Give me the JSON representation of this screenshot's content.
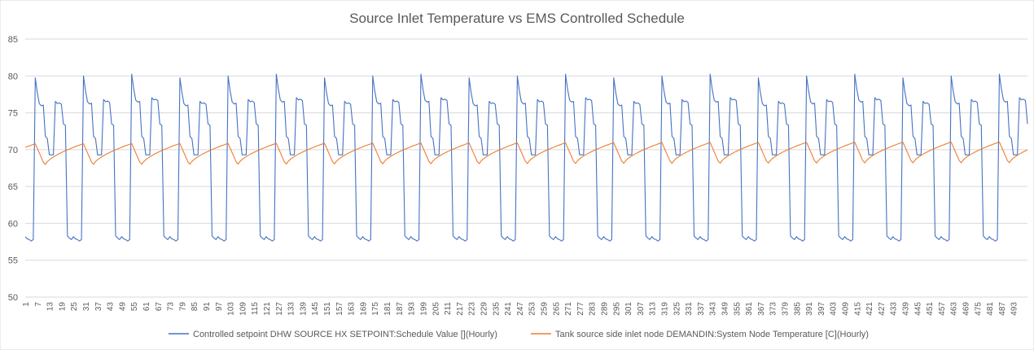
{
  "chart_data": {
    "type": "line",
    "title": "Source Inlet Temperature vs EMS Controlled Schedule",
    "xlabel": "",
    "ylabel": "",
    "ylim": [
      50,
      85
    ],
    "yticks": [
      50,
      55,
      60,
      65,
      70,
      75,
      80,
      85
    ],
    "xlim": [
      1,
      500
    ],
    "xtick_start": 1,
    "xtick_step": 6,
    "xtick_end": 493,
    "grid": "horizontal",
    "legend": "bottom",
    "series": [
      {
        "name": "Controlled setpoint DHW SOURCE HX SETPOINT:Schedule Value [](Hourly)",
        "color": "#4472c4",
        "pattern": "daily_cycle",
        "low": 57.8,
        "high_peak": 80.0,
        "mid_values": [
          76.5,
          76.2,
          71.5,
          73.5,
          69.2,
          69.4,
          70.0
        ],
        "period_hours": 24,
        "values_first_day": [
          58.2,
          57.9,
          57.8,
          57.6,
          57.8,
          80.0,
          78.0,
          76.5,
          76.2,
          76.3,
          71.8,
          71.5,
          69.3,
          69.3,
          69.3,
          76.8,
          76.5,
          76.6,
          76.4,
          73.5,
          73.3,
          58.3,
          58.0,
          57.8
        ]
      },
      {
        "name": "Tank source side inlet node DEMANDIN:System Node Temperature [C](Hourly)",
        "color": "#ed7d31",
        "pattern": "sawtooth",
        "min": 67.8,
        "max": 70.8,
        "period_hours": 24
      }
    ]
  }
}
